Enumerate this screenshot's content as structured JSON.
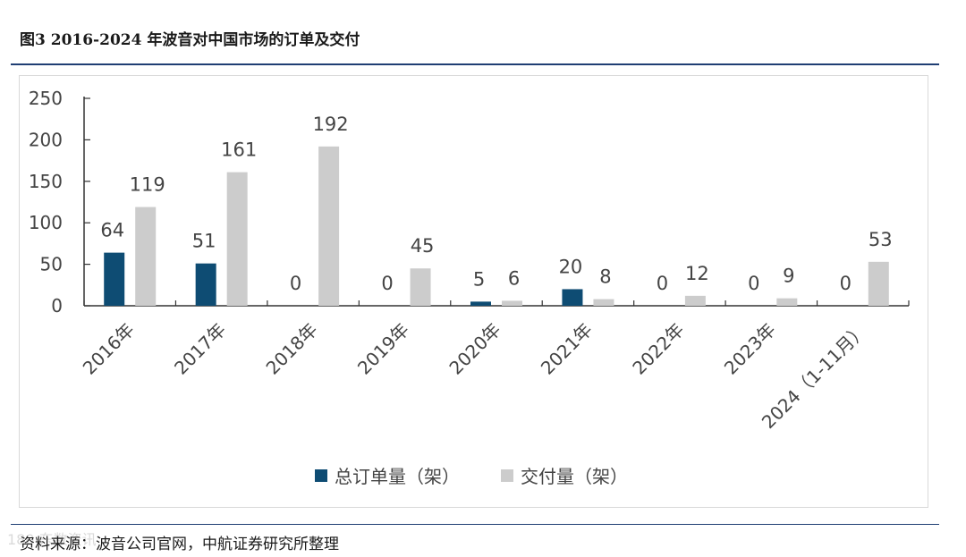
{
  "header": {
    "title": "图3  2016-2024 年波音对中国市场的订单及交付"
  },
  "footer": {
    "source": "资料来源：波音公司官网，中航证券研究所整理",
    "watermark": "180 东数资讯"
  },
  "colors": {
    "rule": "#1f3e73",
    "orders": "#0e4c73",
    "deliveries": "#cccccc"
  },
  "chart_data": {
    "type": "bar",
    "title": "",
    "xlabel": "",
    "ylabel": "",
    "ylim": [
      0,
      250
    ],
    "yticks": [
      "0",
      "50",
      "100",
      "150",
      "200",
      "250"
    ],
    "categories": [
      "2016年",
      "2017年",
      "2018年",
      "2019年",
      "2020年",
      "2021年",
      "2022年",
      "2023年",
      "2024（1-11月）"
    ],
    "series": [
      {
        "name": "总订单量（架）",
        "color": "#0e4c73",
        "values": [
          64,
          51,
          0,
          0,
          5,
          20,
          0,
          0,
          0
        ]
      },
      {
        "name": "交付量（架）",
        "color": "#cccccc",
        "values": [
          119,
          161,
          192,
          45,
          6,
          8,
          12,
          9,
          53
        ]
      }
    ],
    "legend_position": "bottom",
    "grid": false
  }
}
